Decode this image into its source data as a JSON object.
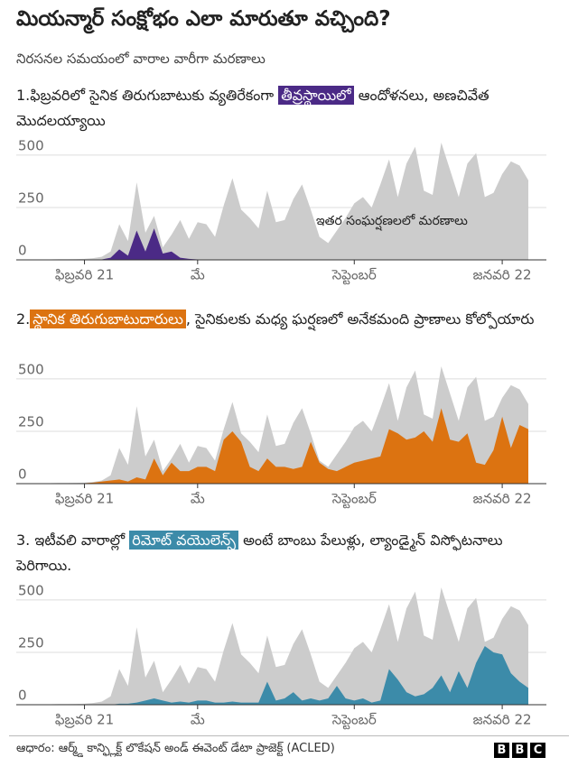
{
  "title": "మియన్మార్ సంక్షోభం ఎలా మారుతూ వచ్చింది?",
  "subtitle": "నిరసనల సమయంలో  వారాల వారీగా మరణాలు",
  "source": "ఆధారం: ఆర్మ్డ్ కాన్ఫ్లిక్ట్ లొకేషన్ అండ్ ఈవెంట్ డేటా ప్రాజెక్ట్ (ACLED)",
  "logo": [
    "B",
    "B",
    "C"
  ],
  "chart_data": [
    {
      "type": "area",
      "heading_before": "1.ఫిబ్రవరిలో సైనిక తిరుగుబాటుకు వ్యతిరేకంగా ",
      "heading_highlight": "తీవ్రస్థాయిలో",
      "heading_after": " ఆందోళనలు, అణచివేత మొదలయ్యాయి",
      "annotation": "ఇతర సంఘర్షణలలో మరణాలు",
      "x": [
        0,
        1,
        2,
        3,
        4,
        5,
        6,
        7,
        8,
        9,
        10,
        11,
        12,
        13,
        14,
        15,
        16,
        17,
        18,
        19,
        20,
        21,
        22,
        23,
        24,
        25,
        26,
        27,
        28,
        29,
        30,
        31,
        32,
        33,
        34,
        35,
        36,
        37,
        38,
        39,
        40,
        41,
        42,
        43,
        44,
        45,
        46,
        47,
        48,
        49,
        50,
        51,
        52,
        53,
        54,
        55
      ],
      "xlim": [
        0,
        55
      ],
      "xticks": [
        {
          "value": 4,
          "label": "ఫిబ్రవరి 21"
        },
        {
          "value": 17,
          "label": "మే"
        },
        {
          "value": 35,
          "label": "సెప్టెంబర్"
        },
        {
          "value": 52,
          "label": "జనవరి 22"
        }
      ],
      "ylim": [
        0,
        560
      ],
      "yticks": [
        0,
        250,
        500
      ],
      "grid": true,
      "series": [
        {
          "color": "#cccccc",
          "values": [
            2,
            3,
            3,
            4,
            5,
            8,
            15,
            40,
            170,
            90,
            370,
            130,
            210,
            60,
            120,
            190,
            100,
            180,
            170,
            110,
            260,
            390,
            240,
            200,
            150,
            330,
            180,
            190,
            290,
            360,
            240,
            110,
            80,
            140,
            200,
            270,
            300,
            250,
            360,
            480,
            300,
            460,
            540,
            330,
            310,
            560,
            430,
            300,
            460,
            510,
            300,
            320,
            410,
            470,
            450,
            380
          ]
        },
        {
          "color": "#4b2a86",
          "values": [
            0,
            0,
            0,
            0,
            0,
            0,
            2,
            10,
            50,
            20,
            140,
            40,
            150,
            30,
            40,
            10,
            5,
            2,
            2,
            0,
            0,
            0,
            0,
            0,
            0,
            0,
            0,
            0,
            0,
            0,
            0,
            0,
            0,
            0,
            0,
            0,
            0,
            0,
            0,
            0,
            0,
            0,
            0,
            0,
            0,
            0,
            0,
            0,
            0,
            0,
            0,
            0,
            0,
            0,
            0,
            0
          ]
        }
      ]
    },
    {
      "type": "area",
      "heading_before": "2.",
      "heading_highlight": "స్థానిక తిరుగుబాటుదారులు",
      "heading_after": ", సైనికులకు మధ్య ఘర్షణలో అనేకమంది ప్రాణాలు కోల్పోయారు",
      "x": [
        0,
        1,
        2,
        3,
        4,
        5,
        6,
        7,
        8,
        9,
        10,
        11,
        12,
        13,
        14,
        15,
        16,
        17,
        18,
        19,
        20,
        21,
        22,
        23,
        24,
        25,
        26,
        27,
        28,
        29,
        30,
        31,
        32,
        33,
        34,
        35,
        36,
        37,
        38,
        39,
        40,
        41,
        42,
        43,
        44,
        45,
        46,
        47,
        48,
        49,
        50,
        51,
        52,
        53,
        54,
        55
      ],
      "xlim": [
        0,
        55
      ],
      "xticks": [
        {
          "value": 4,
          "label": "ఫిబ్రవరి 21"
        },
        {
          "value": 17,
          "label": "మే"
        },
        {
          "value": 35,
          "label": "సెప్టెంబర్"
        },
        {
          "value": 52,
          "label": "జనవరి 22"
        }
      ],
      "ylim": [
        0,
        560
      ],
      "yticks": [
        0,
        250,
        500
      ],
      "grid": true,
      "series": [
        {
          "color": "#cccccc",
          "values": [
            2,
            3,
            3,
            4,
            5,
            8,
            15,
            40,
            170,
            90,
            370,
            130,
            210,
            60,
            120,
            190,
            100,
            180,
            170,
            110,
            260,
            390,
            240,
            200,
            150,
            330,
            180,
            190,
            290,
            360,
            240,
            110,
            80,
            140,
            200,
            270,
            300,
            250,
            360,
            480,
            300,
            460,
            540,
            330,
            310,
            560,
            430,
            300,
            460,
            510,
            300,
            320,
            410,
            470,
            450,
            380
          ]
        },
        {
          "color": "#dc7311",
          "values": [
            0,
            0,
            0,
            0,
            2,
            5,
            10,
            15,
            20,
            10,
            30,
            20,
            120,
            40,
            100,
            60,
            60,
            80,
            80,
            60,
            210,
            250,
            200,
            80,
            60,
            120,
            80,
            80,
            70,
            80,
            200,
            100,
            70,
            60,
            80,
            100,
            110,
            120,
            130,
            260,
            240,
            210,
            220,
            250,
            200,
            360,
            210,
            200,
            240,
            100,
            90,
            160,
            320,
            170,
            280,
            260
          ]
        }
      ]
    },
    {
      "type": "area",
      "heading_before": "3. ఇటీవలి వారాల్లో ",
      "heading_highlight": "రిమోట్ వయొలెన్స్",
      "heading_after": " అంటే బాంబు పేలుళ్లు, ల్యాండ్మైన్ విస్ఫోటనాలు పెరిగాయి.",
      "x": [
        0,
        1,
        2,
        3,
        4,
        5,
        6,
        7,
        8,
        9,
        10,
        11,
        12,
        13,
        14,
        15,
        16,
        17,
        18,
        19,
        20,
        21,
        22,
        23,
        24,
        25,
        26,
        27,
        28,
        29,
        30,
        31,
        32,
        33,
        34,
        35,
        36,
        37,
        38,
        39,
        40,
        41,
        42,
        43,
        44,
        45,
        46,
        47,
        48,
        49,
        50,
        51,
        52,
        53,
        54,
        55
      ],
      "xlim": [
        0,
        55
      ],
      "xticks": [
        {
          "value": 4,
          "label": "ఫిబ్రవరి 21"
        },
        {
          "value": 17,
          "label": "మే"
        },
        {
          "value": 35,
          "label": "సెప్టెంబర్"
        },
        {
          "value": 52,
          "label": "జనవరి 22"
        }
      ],
      "ylim": [
        0,
        560
      ],
      "yticks": [
        0,
        250,
        500
      ],
      "grid": true,
      "series": [
        {
          "color": "#cccccc",
          "values": [
            2,
            3,
            3,
            4,
            5,
            8,
            15,
            40,
            170,
            90,
            370,
            130,
            210,
            60,
            120,
            190,
            100,
            180,
            170,
            110,
            260,
            390,
            240,
            200,
            150,
            330,
            180,
            190,
            290,
            360,
            240,
            110,
            80,
            140,
            200,
            270,
            300,
            250,
            360,
            480,
            300,
            460,
            540,
            330,
            310,
            560,
            430,
            300,
            460,
            510,
            300,
            320,
            410,
            470,
            450,
            380
          ]
        },
        {
          "color": "#3c8ba9",
          "values": [
            0,
            0,
            0,
            0,
            0,
            0,
            0,
            0,
            5,
            5,
            10,
            20,
            30,
            20,
            10,
            15,
            10,
            20,
            20,
            10,
            10,
            15,
            10,
            10,
            10,
            110,
            20,
            30,
            60,
            20,
            30,
            20,
            30,
            90,
            30,
            20,
            30,
            10,
            20,
            170,
            120,
            60,
            40,
            50,
            80,
            140,
            60,
            160,
            80,
            200,
            280,
            250,
            240,
            150,
            110,
            80
          ]
        }
      ]
    }
  ]
}
